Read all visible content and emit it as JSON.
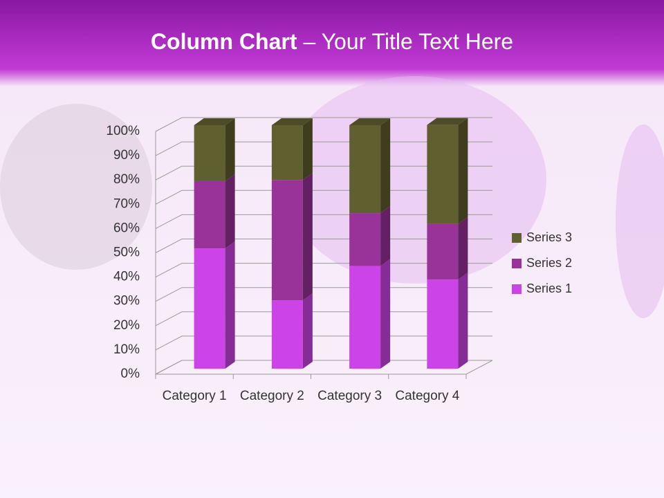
{
  "chart_data": {
    "type": "stacked-column-3d",
    "title_parts": [
      "Column Chart",
      "– Your Title Text Here"
    ],
    "categories": [
      "Category 1",
      "Category 2",
      "Category 3",
      "Category 4"
    ],
    "series": [
      {
        "name": "Series 1",
        "color": "#cc44e8",
        "values": [
          49.4,
          28.1,
          42.2,
          36.6
        ]
      },
      {
        "name": "Series 2",
        "color": "#993399",
        "values": [
          27.6,
          49.4,
          21.7,
          22.8
        ]
      },
      {
        "name": "Series 3",
        "color": "#5f5f2f",
        "values": [
          23.0,
          22.5,
          36.1,
          40.7
        ]
      }
    ],
    "ylim": [
      0,
      100
    ],
    "yticks": [
      {
        "value": 0,
        "label": "0%"
      },
      {
        "value": 10,
        "label": "10%"
      },
      {
        "value": 20,
        "label": "20%"
      },
      {
        "value": 30,
        "label": "30%"
      },
      {
        "value": 40,
        "label": "40%"
      },
      {
        "value": 50,
        "label": "50%"
      },
      {
        "value": 60,
        "label": "60%"
      },
      {
        "value": 70,
        "label": "70%"
      },
      {
        "value": 80,
        "label": "80%"
      },
      {
        "value": 90,
        "label": "90%"
      },
      {
        "value": 100,
        "label": "100%"
      }
    ],
    "grid": true,
    "legend": "right"
  }
}
